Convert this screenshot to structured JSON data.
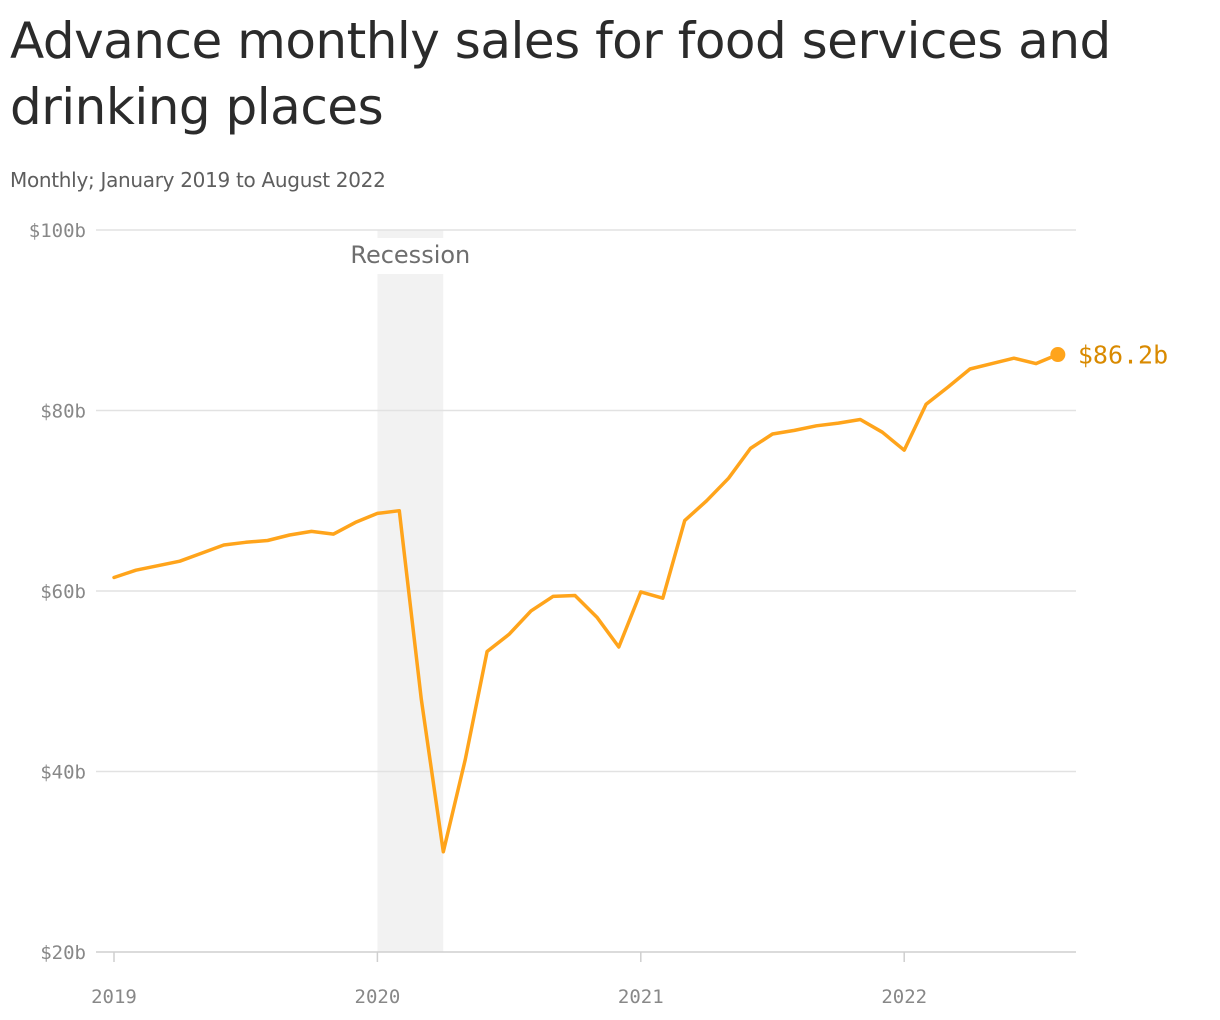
{
  "title": "Advance monthly sales for food services and drinking places",
  "subtitle": "Monthly; January 2019 to August 2022",
  "colors": {
    "line": "#ffa41b",
    "end_label": "#d98a00",
    "recession_band": "#f2f2f2",
    "grid": "#e2e2e2",
    "tick_text": "#888888"
  },
  "chart_data": {
    "type": "line",
    "title": "Advance monthly sales for food services and drinking places",
    "subtitle": "Monthly; January 2019 to August 2022",
    "xlabel": "",
    "ylabel": "",
    "ylim": [
      20,
      100
    ],
    "y_ticks": [
      {
        "value": 20,
        "label": "$20b"
      },
      {
        "value": 40,
        "label": "$40b"
      },
      {
        "value": 60,
        "label": "$60b"
      },
      {
        "value": 80,
        "label": "$80b"
      },
      {
        "value": 100,
        "label": "$100b"
      }
    ],
    "x_ticks": [
      {
        "value": "2019-01",
        "label": "2019"
      },
      {
        "value": "2020-01",
        "label": "2020"
      },
      {
        "value": "2021-01",
        "label": "2021"
      },
      {
        "value": "2022-01",
        "label": "2022"
      }
    ],
    "grid": true,
    "legend": "none",
    "unit": "billions of dollars",
    "x": [
      "2019-01",
      "2019-02",
      "2019-03",
      "2019-04",
      "2019-05",
      "2019-06",
      "2019-07",
      "2019-08",
      "2019-09",
      "2019-10",
      "2019-11",
      "2019-12",
      "2020-01",
      "2020-02",
      "2020-03",
      "2020-04",
      "2020-05",
      "2020-06",
      "2020-07",
      "2020-08",
      "2020-09",
      "2020-10",
      "2020-11",
      "2020-12",
      "2021-01",
      "2021-02",
      "2021-03",
      "2021-04",
      "2021-05",
      "2021-06",
      "2021-07",
      "2021-08",
      "2021-09",
      "2021-10",
      "2021-11",
      "2021-12",
      "2022-01",
      "2022-02",
      "2022-03",
      "2022-04",
      "2022-05",
      "2022-06",
      "2022-07",
      "2022-08"
    ],
    "series": [
      {
        "values": [
          61.5,
          62.3,
          62.8,
          63.3,
          64.2,
          65.1,
          65.4,
          65.6,
          66.2,
          66.6,
          66.3,
          67.6,
          68.6,
          68.9,
          48.0,
          31.1,
          41.3,
          53.3,
          55.2,
          57.8,
          59.4,
          59.5,
          57.1,
          53.8,
          59.9,
          59.2,
          67.8,
          70.0,
          72.5,
          75.8,
          77.4,
          77.8,
          78.3,
          78.6,
          79.0,
          77.6,
          75.6,
          80.7,
          82.6,
          84.6,
          85.2,
          85.8,
          85.2,
          86.2
        ],
        "color": "#ffa41b"
      }
    ],
    "annotations": [
      {
        "type": "band",
        "start": "2020-01",
        "end": "2020-04",
        "label": "Recession"
      },
      {
        "type": "end_label",
        "x": "2022-08",
        "value": 86.2,
        "label": "$86.2b"
      }
    ]
  }
}
